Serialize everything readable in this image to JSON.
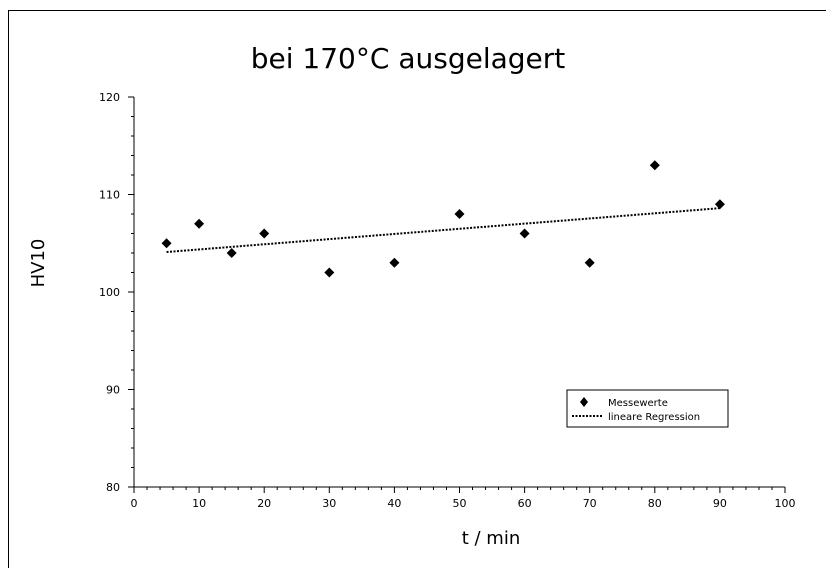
{
  "chart_data": {
    "type": "scatter",
    "title": "bei 170°C ausgelagert",
    "xlabel": "t / min",
    "ylabel": "HV10",
    "xlim": [
      0,
      100
    ],
    "ylim": [
      80,
      120
    ],
    "xticks": [
      0,
      10,
      20,
      30,
      40,
      50,
      60,
      70,
      80,
      90,
      100
    ],
    "yticks": [
      80,
      90,
      100,
      110,
      120
    ],
    "grid": false,
    "legend_position": "bottom-right",
    "series": [
      {
        "name": "Messewerte",
        "kind": "scatter",
        "marker": "diamond",
        "color": "#000000",
        "x": [
          5,
          10,
          15,
          20,
          30,
          40,
          50,
          60,
          70,
          80,
          90
        ],
        "y": [
          105,
          107,
          104,
          106,
          102,
          103,
          108,
          106,
          103,
          113,
          109
        ]
      },
      {
        "name": "lineare Regression",
        "kind": "line",
        "style": "dotted",
        "color": "#000000",
        "x": [
          5,
          90
        ],
        "y": [
          104.1,
          108.6
        ]
      }
    ]
  }
}
